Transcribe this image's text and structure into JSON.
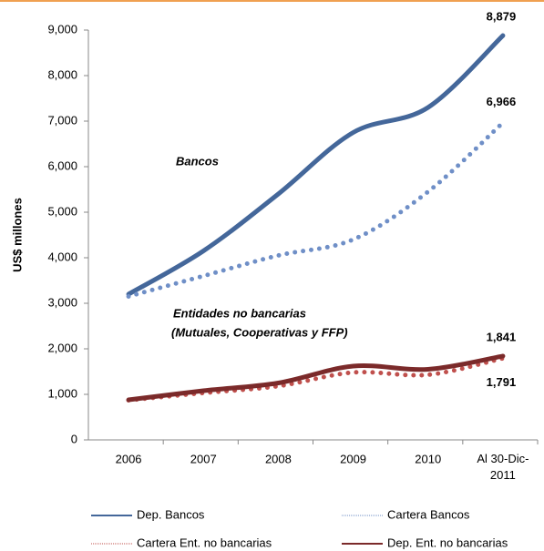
{
  "chart_data": {
    "type": "line",
    "y_label": "US$ millones",
    "annotations": [
      "Bancos",
      "Entidades no bancarias",
      "(Mutuales, Cooperativas y FFP)"
    ],
    "categories": [
      "2006",
      "2007",
      "2008",
      "2009",
      "2010",
      "Al 30-Dic-2011"
    ],
    "series": [
      {
        "name": "Dep. Bancos",
        "color": "#44679a",
        "style": "solid",
        "values": [
          3200,
          4150,
          5400,
          6750,
          7300,
          8879
        ],
        "value_labels": [
          null,
          null,
          null,
          null,
          null,
          "8,879"
        ]
      },
      {
        "name": "Cartera Bancos",
        "color": "#6f8fc7",
        "style": "dotted",
        "values": [
          3150,
          3600,
          4050,
          4400,
          5450,
          6966
        ],
        "value_labels": [
          null,
          null,
          null,
          null,
          null,
          "6,966"
        ]
      },
      {
        "name": "Cartera Ent. no bancarias",
        "color": "#c0504d",
        "style": "dotted",
        "values": [
          870,
          1030,
          1180,
          1480,
          1430,
          1791
        ],
        "value_labels": [
          null,
          null,
          null,
          null,
          null,
          "1,791"
        ]
      },
      {
        "name": "Dep. Ent. no bancarias",
        "color": "#7b2a2a",
        "style": "solid",
        "values": [
          880,
          1080,
          1250,
          1620,
          1550,
          1841
        ],
        "value_labels": [
          null,
          null,
          null,
          null,
          null,
          "1,841"
        ]
      }
    ],
    "ylim": [
      0,
      9000
    ],
    "yticks": [
      {
        "value": 0,
        "label": "0"
      },
      {
        "value": 1000,
        "label": "1,000"
      },
      {
        "value": 2000,
        "label": "2,000"
      },
      {
        "value": 3000,
        "label": "3,000"
      },
      {
        "value": 4000,
        "label": "4,000"
      },
      {
        "value": 5000,
        "label": "5,000"
      },
      {
        "value": 6000,
        "label": "6,000"
      },
      {
        "value": 7000,
        "label": "7,000"
      },
      {
        "value": 8000,
        "label": "8,000"
      },
      {
        "value": 9000,
        "label": "9,000"
      }
    ],
    "grid": false,
    "legend": "bottom"
  }
}
